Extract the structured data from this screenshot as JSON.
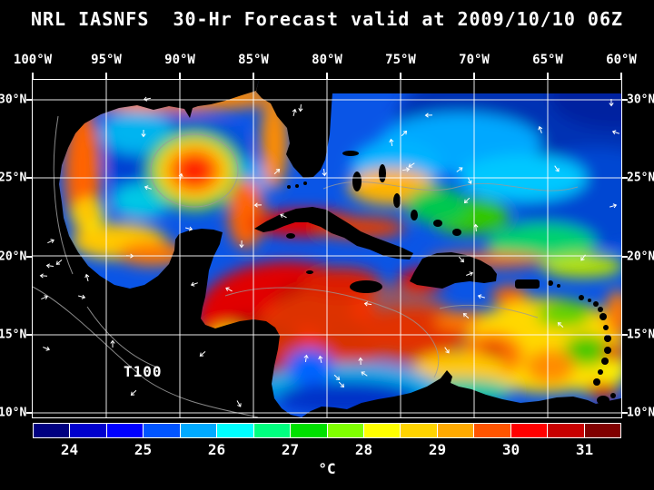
{
  "title": "NRL IASNFS  30-Hr Forecast valid at 2009/10/10 06Z",
  "map": {
    "annotation": "T100",
    "lon_labels": [
      "100°W",
      "95°W",
      "90°W",
      "85°W",
      "80°W",
      "75°W",
      "70°W",
      "65°W",
      "60°W"
    ],
    "lat_labels": [
      "30°N",
      "25°N",
      "20°N",
      "15°N",
      "10°N"
    ]
  },
  "colorbar": {
    "unit": "°C",
    "ticks": [
      "24",
      "25",
      "26",
      "27",
      "28",
      "29",
      "30",
      "31"
    ],
    "segments": [
      "#000080",
      "#0000cd",
      "#0000ff",
      "#0055ff",
      "#00aaff",
      "#00ffff",
      "#00ff80",
      "#00e000",
      "#80ff00",
      "#ffff00",
      "#ffd400",
      "#ffaa00",
      "#ff5500",
      "#ff0000",
      "#c80000",
      "#800000"
    ]
  },
  "chart_data": {
    "type": "heatmap",
    "title": "NRL IASNFS 30-Hr Forecast valid at 2009/10/10 06Z",
    "field_label": "T100",
    "unit": "°C",
    "x_tick_labels": [
      "100°W",
      "95°W",
      "90°W",
      "85°W",
      "80°W",
      "75°W",
      "70°W",
      "65°W",
      "60°W"
    ],
    "y_tick_labels": [
      "30°N",
      "25°N",
      "20°N",
      "15°N",
      "10°N"
    ],
    "colorbar_range": [
      23.5,
      31.5
    ],
    "colorbar_tick_values": [
      24,
      25,
      26,
      27,
      28,
      29,
      30,
      31
    ],
    "overlays": [
      "white 5-degree grid lines",
      "white current vector arrows",
      "black land mask",
      "gray coastline contours"
    ]
  }
}
